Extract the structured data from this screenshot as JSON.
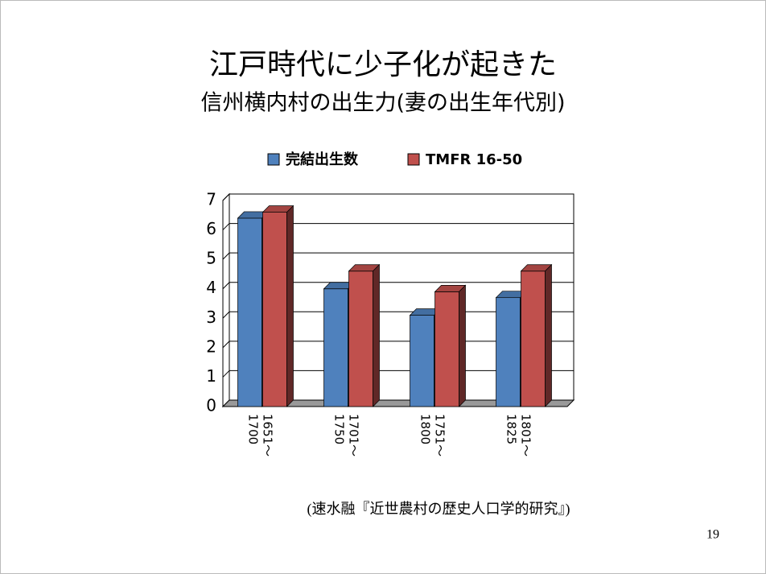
{
  "chart_data": {
    "type": "bar3d",
    "title": "江戸時代に少子化が起きた",
    "subtitle": "信州横内村の出生力(妻の出生年代別)",
    "categories": [
      "1651～1700",
      "1701～1750",
      "1751～1800",
      "1801～1825"
    ],
    "series": [
      {
        "name": "完結出生数",
        "color": "#4f81bd",
        "values": [
          6.4,
          4.0,
          3.1,
          3.7
        ]
      },
      {
        "name": "TMFR 16-50",
        "color": "#c0504d",
        "values": [
          6.6,
          4.6,
          3.9,
          4.6
        ]
      }
    ],
    "ylim": [
      0,
      7
    ],
    "yticks": [
      0,
      1,
      2,
      3,
      4,
      5,
      6,
      7
    ],
    "grid": true,
    "source": "(速水融『近世農村の歴史人口学的研究』)",
    "page_number": "19"
  }
}
